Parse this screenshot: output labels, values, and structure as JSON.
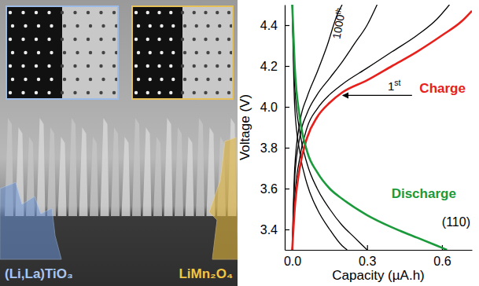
{
  "chart_data": {
    "type": "line",
    "xlabel": "Capacity (µA.h)",
    "ylabel": "Voltage (V)",
    "xlim": [
      -0.03,
      0.72
    ],
    "ylim": [
      3.3,
      4.5
    ],
    "xticks": [
      {
        "value": 0,
        "label": "0.0"
      },
      {
        "value": 0.3,
        "label": "0.3"
      },
      {
        "value": 0.6,
        "label": "0.6"
      }
    ],
    "yticks": [
      3.4,
      3.6,
      3.8,
      {
        "value": 4,
        "label": "4.0"
      },
      4.2,
      4.4
    ],
    "grid": false,
    "series": [
      {
        "color": "#000000",
        "x": [
          0,
          0.01,
          0.03,
          0.06,
          0.1,
          0.15,
          0.2,
          0.3,
          0.4,
          0.5,
          0.58,
          0.63
        ],
        "values": [
          3.3,
          3.55,
          3.75,
          3.9,
          3.99,
          4.06,
          4.11,
          4.19,
          4.27,
          4.35,
          4.43,
          4.5
        ]
      },
      {
        "color": "#000000",
        "x": [
          0,
          0.01,
          0.03,
          0.06,
          0.1,
          0.15,
          0.2,
          0.25,
          0.3,
          0.34
        ],
        "values": [
          3.3,
          3.65,
          3.85,
          3.97,
          4.06,
          4.14,
          4.22,
          4.31,
          4.4,
          4.5
        ]
      },
      {
        "color": "#000000",
        "x": [
          0,
          0.01,
          0.03,
          0.06,
          0.1,
          0.14,
          0.18,
          0.2
        ],
        "values": [
          3.3,
          3.7,
          3.92,
          4.05,
          4.17,
          4.3,
          4.45,
          4.5
        ]
      },
      {
        "color": "#000000",
        "x": [
          0,
          0.01,
          0.03,
          0.06,
          0.1,
          0.15,
          0.2,
          0.25,
          0.3
        ],
        "values": [
          4.5,
          4.1,
          3.88,
          3.72,
          3.6,
          3.5,
          3.42,
          3.36,
          3.3
        ]
      },
      {
        "color": "#000000",
        "x": [
          0,
          0.01,
          0.03,
          0.06,
          0.1,
          0.15,
          0.2,
          0.22
        ],
        "values": [
          4.5,
          4.0,
          3.78,
          3.62,
          3.5,
          3.4,
          3.32,
          3.3
        ]
      },
      {
        "name": "Charge",
        "color": "#e8201c",
        "x": [
          0,
          0.01,
          0.03,
          0.06,
          0.1,
          0.15,
          0.2,
          0.3,
          0.4,
          0.5,
          0.6,
          0.68,
          0.72
        ],
        "values": [
          3.3,
          3.5,
          3.7,
          3.85,
          3.95,
          4.02,
          4.07,
          4.13,
          4.2,
          4.27,
          4.35,
          4.42,
          4.47
        ]
      },
      {
        "name": "Discharge",
        "color": "#1a9a3a",
        "x": [
          0,
          0.01,
          0.03,
          0.06,
          0.1,
          0.15,
          0.2,
          0.3,
          0.4,
          0.5,
          0.6,
          0.62
        ],
        "values": [
          4.5,
          4.2,
          3.95,
          3.78,
          3.68,
          3.6,
          3.55,
          3.47,
          3.41,
          3.36,
          3.31,
          3.3
        ]
      }
    ],
    "annotations": [
      "1st",
      "1000th",
      "(110)"
    ]
  },
  "image": {
    "labels": [
      "(Li,La)TiO₃",
      "LiMn₂O₄"
    ]
  }
}
